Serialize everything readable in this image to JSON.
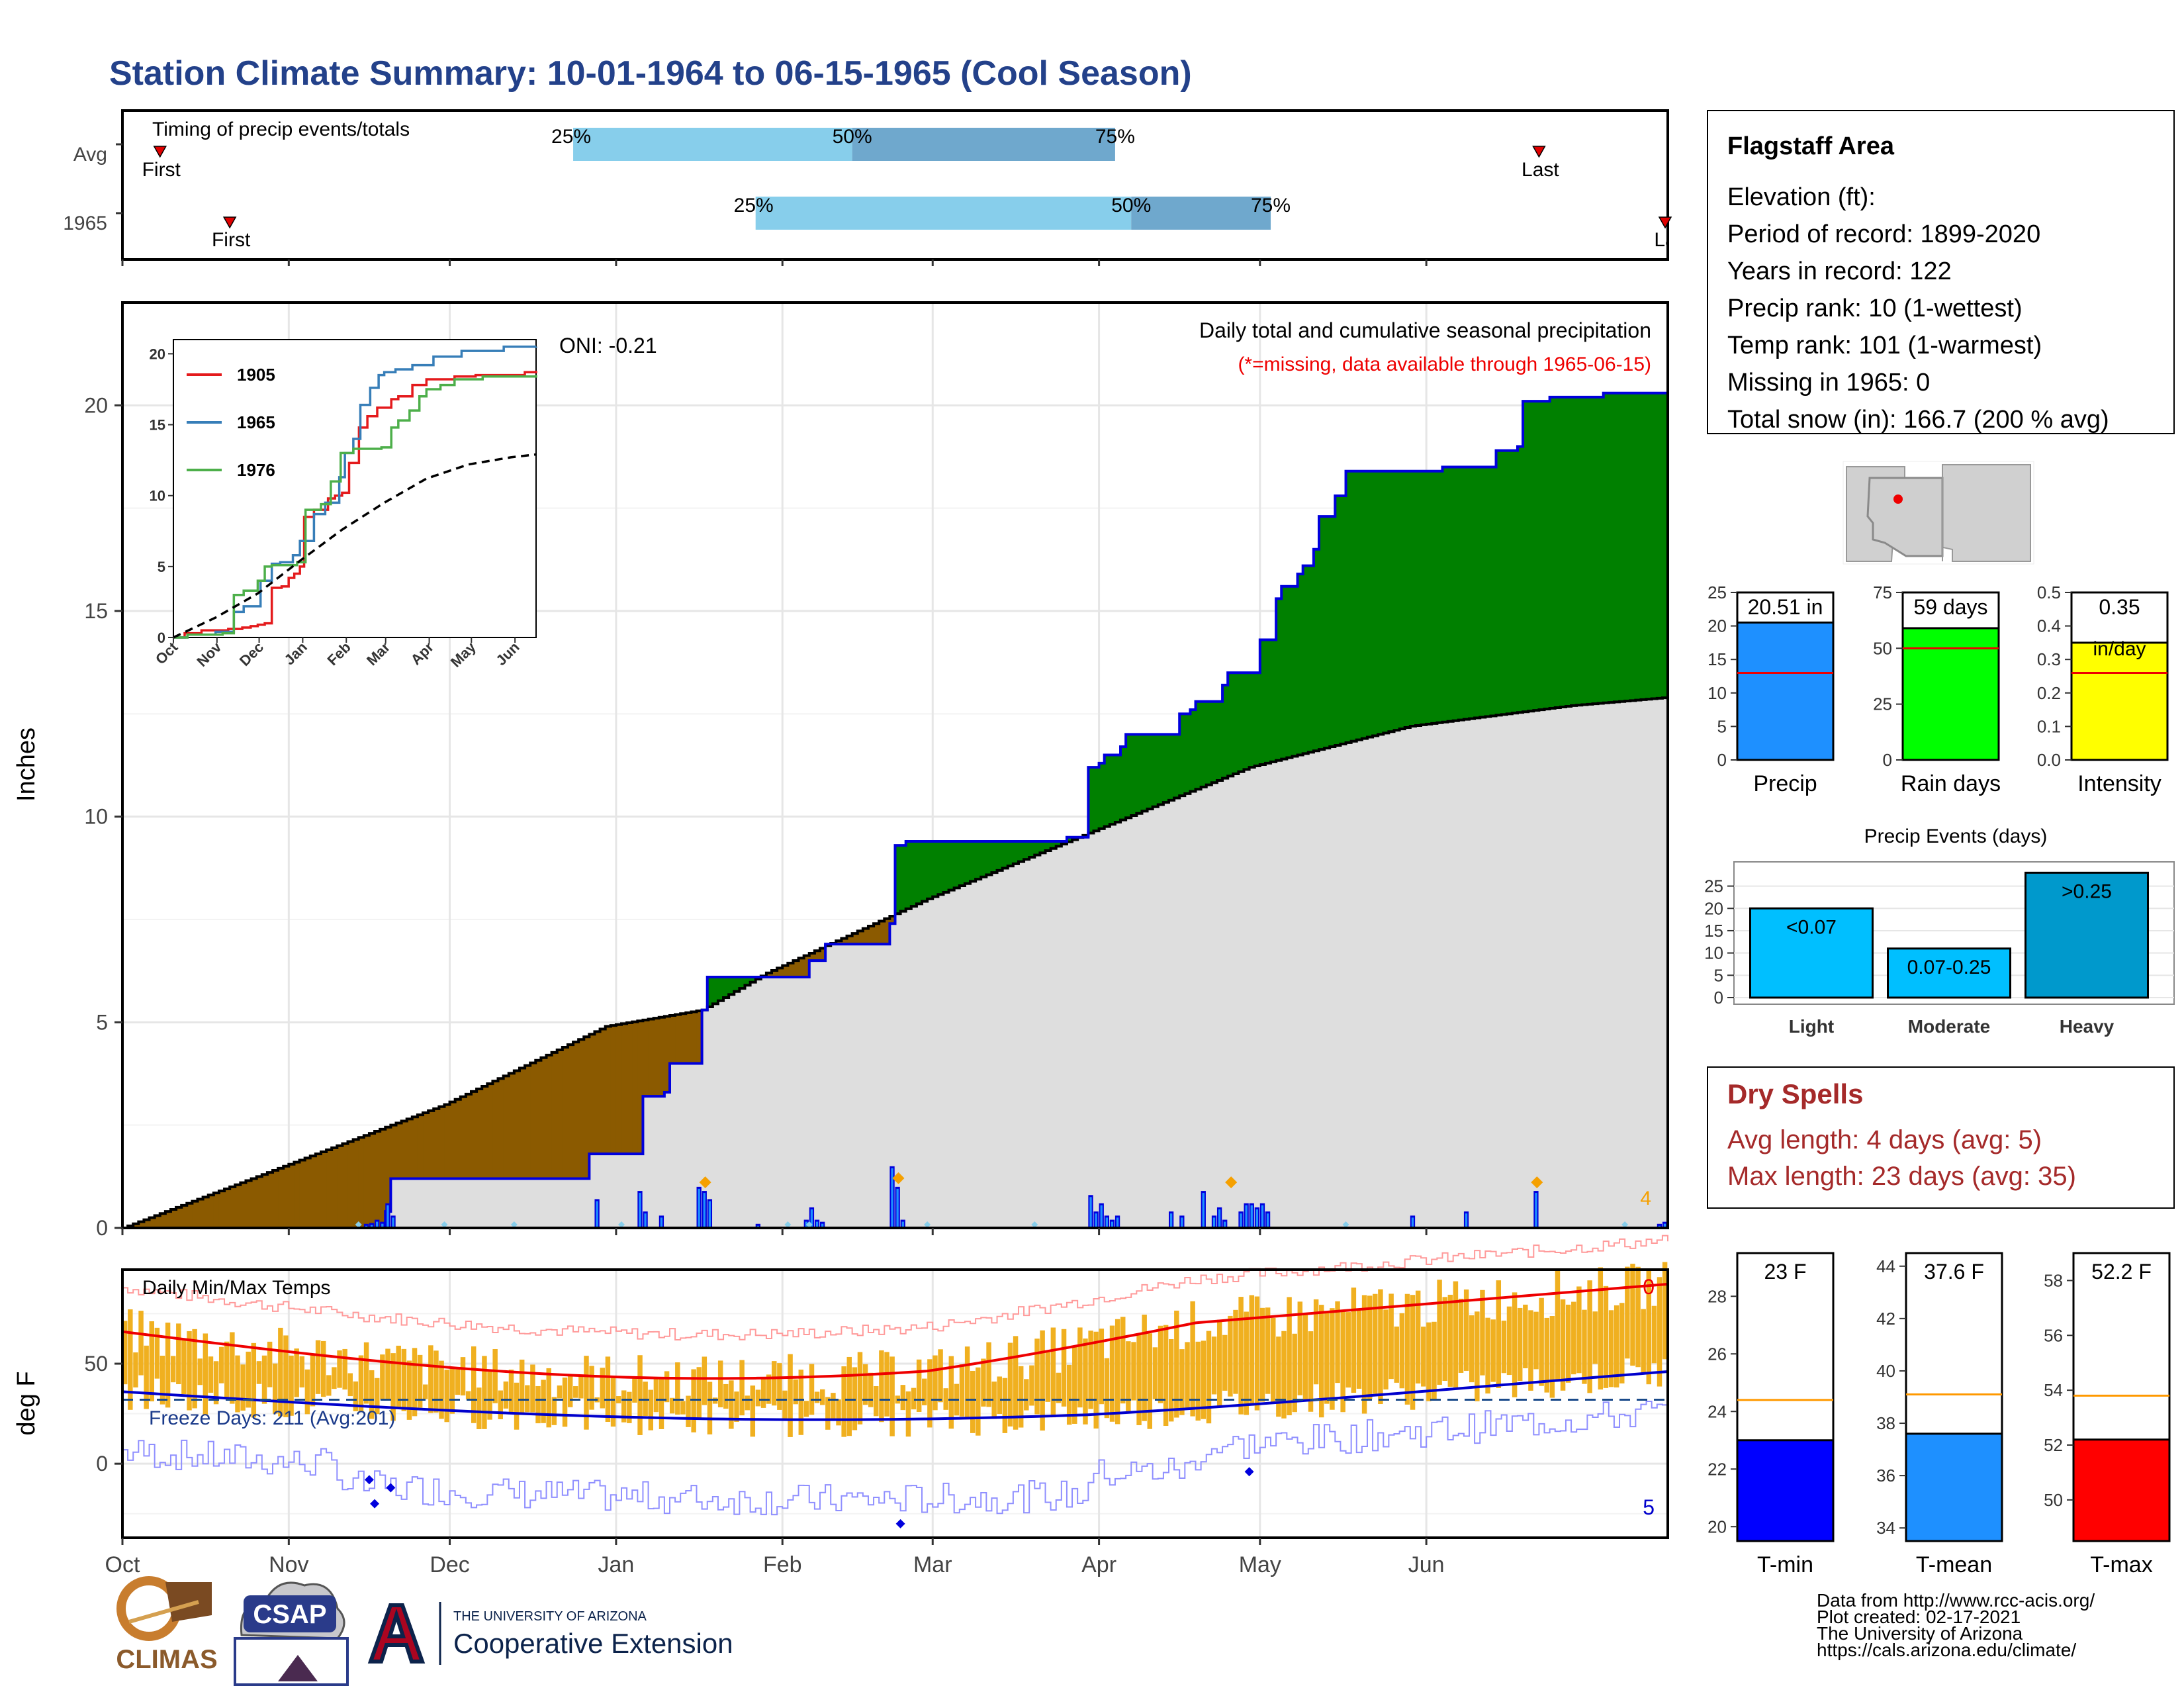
{
  "header": {
    "title": "Station Climate Summary: 10-01-1964 to 06-15-1965 (Cool Season)"
  },
  "colors": {
    "title": "#23418a",
    "cumulative_fill": "#008000",
    "deficit_fill": "#8b5a00",
    "normal_fill": "#dedede",
    "precip_line": "#0000dd",
    "event_marker": "#f5a000",
    "temp_bar": "#f0b020",
    "tmax_line": "#ee0000",
    "tmin_line": "#0000cc",
    "light_blue": "#87ceeb",
    "steel_blue": "#6fa8cd",
    "dry_spells": "#a52a2a",
    "precip_bar": "#1e90ff",
    "raindays_bar": "#00ff00",
    "intensity_bar": "#ffff00",
    "event_bar": "#00bfff",
    "event_bar_heavy": "#0099cc",
    "tmin_bar": "#0000ff",
    "tmean_bar": "#1e90ff",
    "tmax_bar": "#ff0000",
    "avg_line": "#ff9900"
  },
  "timing": {
    "title": "Timing of precip events/totals",
    "rows": [
      "Avg",
      "1965"
    ],
    "first_label": "First",
    "last_label_avg": "Last",
    "last_label_1965": "La",
    "avg": {
      "first_day": 7,
      "p25_day": 84,
      "p50_day": 136,
      "p75_day": 185,
      "last_day": 264
    },
    "y1965": {
      "first_day": 20,
      "p25_day": 118,
      "p50_day": 188,
      "p75_day": 214,
      "last_day": 284
    },
    "p25_label": "25%",
    "p50_label": "50%",
    "p75_label": "75%"
  },
  "main": {
    "ylabel": "Inches",
    "note": "Daily total and cumulative seasonal precipitation",
    "missing_note": "(*=missing, data available through 1965-06-15)",
    "oni": "ONI: -0.21",
    "events_count": "4",
    "yticks": [
      "0",
      "5",
      "10",
      "15",
      "20"
    ]
  },
  "inset": {
    "legend": [
      "1905",
      "1965",
      "1976"
    ],
    "yticks": [
      "0",
      "5",
      "10",
      "15",
      "20"
    ],
    "xticks": [
      "Oct",
      "Nov",
      "Dec",
      "Jan",
      "Feb",
      "Mar",
      "Apr",
      "May",
      "Jun"
    ]
  },
  "temps": {
    "title": "Daily Min/Max Temps",
    "ylabel": "deg F",
    "freeze": "Freeze Days: 211 (Avg:201)",
    "count_top": "0",
    "count_bottom": "5",
    "yticks": [
      "0",
      "50"
    ]
  },
  "months": [
    "Oct",
    "Nov",
    "Dec",
    "Jan",
    "Feb",
    "Mar",
    "Apr",
    "May",
    "Jun"
  ],
  "station": {
    "name": "Flagstaff Area",
    "lines": [
      "Elevation (ft):",
      "Period of record: 1899-2020",
      "Years in record: 122",
      "Precip rank: 10 (1-wettest)",
      "Temp rank: 101 (1-warmest)",
      "Missing in 1965: 0",
      "Total snow (in): 166.7 (200 % avg)"
    ]
  },
  "mini_bars": {
    "precip": {
      "label": "20.51 in",
      "name": "Precip",
      "value": 20.51,
      "avg": 13.0,
      "max": 25,
      "yticks": [
        "0",
        "5",
        "10",
        "15",
        "20",
        "25"
      ]
    },
    "rain_days": {
      "label": "59 days",
      "name": "Rain days",
      "value": 59,
      "avg": 50,
      "max": 75,
      "yticks": [
        "0",
        "25",
        "50",
        "75"
      ]
    },
    "intensity": {
      "label": "0.35",
      "label2": "in/day",
      "name": "Intensity",
      "value": 0.35,
      "avg": 0.26,
      "max": 0.5,
      "yticks": [
        "0.0",
        "0.1",
        "0.2",
        "0.3",
        "0.4",
        "0.5"
      ]
    }
  },
  "precip_events": {
    "title": "Precip Events (days)",
    "yticks": [
      "0",
      "5",
      "10",
      "15",
      "20",
      "25"
    ],
    "bars": [
      {
        "name": "Light",
        "label": "<0.07",
        "value": 20
      },
      {
        "name": "Moderate",
        "label": "0.07-0.25",
        "value": 11
      },
      {
        "name": "Heavy",
        "label": ">0.25",
        "value": 28
      }
    ]
  },
  "dry_spells": {
    "title": "Dry Spells",
    "avg": "Avg length: 4 days (avg: 5)",
    "max": "Max length: 23 days (avg: 35)"
  },
  "temp_bars": {
    "tmin": {
      "label": "23 F",
      "name": "T-min",
      "value": 23,
      "avg": 24.4,
      "min": 19.5,
      "max": 29.5,
      "yticks": [
        "20",
        "22",
        "24",
        "26",
        "28"
      ]
    },
    "tmean": {
      "label": "37.6 F",
      "name": "T-mean",
      "value": 37.6,
      "avg": 39.1,
      "min": 33.5,
      "max": 44.5,
      "yticks": [
        "34",
        "36",
        "38",
        "40",
        "42",
        "44"
      ]
    },
    "tmax": {
      "label": "52.2 F",
      "name": "T-max",
      "value": 52.2,
      "avg": 53.8,
      "min": 48.5,
      "max": 59.0,
      "yticks": [
        "50",
        "52",
        "54",
        "56",
        "58"
      ]
    }
  },
  "footer": {
    "lines": [
      "Data from http://www.rcc-acis.org/",
      "Plot created: 02-17-2021",
      "The University of Arizona",
      "https://cals.arizona.edu/climate/"
    ],
    "logo_climas": "CLIMAS",
    "logo_csap": "CSAP",
    "logo_ua_small": "THE UNIVERSITY OF ARIZONA",
    "logo_ua_large": "Cooperative Extension"
  },
  "chart_data": {
    "type": "area",
    "title": "Daily total and cumulative seasonal precipitation",
    "ylabel": "Inches",
    "ylim": [
      0,
      22.5
    ],
    "x_domain_days": [
      0,
      288
    ],
    "cumulative_1965": [
      [
        0,
        0
      ],
      [
        48,
        0.0
      ],
      [
        49,
        0.4
      ],
      [
        50,
        1.2
      ],
      [
        87,
        1.2
      ],
      [
        87,
        1.8
      ],
      [
        97,
        2.2
      ],
      [
        97,
        3.2
      ],
      [
        101,
        3.3
      ],
      [
        102,
        4.0
      ],
      [
        108,
        4.3
      ],
      [
        108,
        5.3
      ],
      [
        109,
        6.1
      ],
      [
        128,
        6.1
      ],
      [
        128,
        6.5
      ],
      [
        131,
        6.6
      ],
      [
        131,
        6.9
      ],
      [
        143,
        7.0
      ],
      [
        143,
        7.4
      ],
      [
        144,
        8.3
      ],
      [
        144,
        9.3
      ],
      [
        146,
        9.4
      ],
      [
        176,
        9.4
      ],
      [
        176,
        9.5
      ],
      [
        179,
        9.5
      ],
      [
        180,
        10.5
      ],
      [
        180,
        11.2
      ],
      [
        182,
        11.3
      ],
      [
        183,
        11.5
      ],
      [
        186,
        11.7
      ],
      [
        187,
        12.0
      ],
      [
        197,
        12.0
      ],
      [
        197,
        12.5
      ],
      [
        199,
        12.6
      ],
      [
        200,
        12.8
      ],
      [
        205,
        12.8
      ],
      [
        205,
        13.2
      ],
      [
        206,
        13.5
      ],
      [
        209,
        13.5
      ],
      [
        212,
        13.6
      ],
      [
        212,
        14.3
      ],
      [
        215,
        14.7
      ],
      [
        215,
        15.3
      ],
      [
        216,
        15.6
      ],
      [
        219,
        15.9
      ],
      [
        220,
        16.1
      ],
      [
        222,
        16.5
      ],
      [
        223,
        17.3
      ],
      [
        226,
        17.8
      ],
      [
        228,
        18.4
      ],
      [
        246,
        18.4
      ],
      [
        246,
        18.5
      ],
      [
        256,
        18.5
      ],
      [
        256,
        18.9
      ],
      [
        260,
        19.0
      ],
      [
        261,
        19.1
      ],
      [
        261,
        20.1
      ],
      [
        266,
        20.2
      ],
      [
        276,
        20.3
      ],
      [
        288,
        20.51
      ]
    ],
    "normal": [
      [
        0,
        0.0
      ],
      [
        30,
        1.5
      ],
      [
        60,
        3.0
      ],
      [
        90,
        4.9
      ],
      [
        108,
        5.3
      ],
      [
        120,
        6.2
      ],
      [
        150,
        8.0
      ],
      [
        180,
        9.6
      ],
      [
        210,
        11.2
      ],
      [
        240,
        12.2
      ],
      [
        270,
        12.7
      ],
      [
        288,
        12.9
      ]
    ],
    "daily": [
      [
        45,
        0.1
      ],
      [
        46,
        0.12
      ],
      [
        47,
        0.2
      ],
      [
        48,
        0.15
      ],
      [
        49,
        0.6
      ],
      [
        50,
        0.3
      ],
      [
        88,
        0.7
      ],
      [
        96,
        0.9
      ],
      [
        97,
        0.4
      ],
      [
        100,
        0.3
      ],
      [
        107,
        1.0
      ],
      [
        108,
        0.9
      ],
      [
        109,
        0.7
      ],
      [
        118,
        0.1
      ],
      [
        127,
        0.2
      ],
      [
        128,
        0.5
      ],
      [
        129,
        0.2
      ],
      [
        130,
        0.15
      ],
      [
        143,
        1.5
      ],
      [
        144,
        1.0
      ],
      [
        145,
        0.2
      ],
      [
        180,
        0.8
      ],
      [
        181,
        0.4
      ],
      [
        182,
        0.6
      ],
      [
        183,
        0.3
      ],
      [
        184,
        0.2
      ],
      [
        185,
        0.3
      ],
      [
        195,
        0.4
      ],
      [
        197,
        0.3
      ],
      [
        201,
        0.9
      ],
      [
        203,
        0.3
      ],
      [
        204,
        0.5
      ],
      [
        205,
        0.2
      ],
      [
        208,
        0.4
      ],
      [
        209,
        0.6
      ],
      [
        210,
        0.6
      ],
      [
        211,
        0.5
      ],
      [
        212,
        0.6
      ],
      [
        213,
        0.4
      ],
      [
        240,
        0.3
      ],
      [
        250,
        0.4
      ],
      [
        263,
        0.9
      ],
      [
        286,
        0.1
      ],
      [
        287,
        0.15
      ]
    ],
    "event_markers": [
      108,
      144,
      206,
      263
    ],
    "inset_series": [
      {
        "name": "1905",
        "points": [
          [
            0,
            0
          ],
          [
            8,
            0.3
          ],
          [
            20,
            0.5
          ],
          [
            25,
            0.5
          ],
          [
            33,
            0.5
          ],
          [
            39,
            0.6
          ],
          [
            44,
            0.6
          ],
          [
            49,
            0.7
          ],
          [
            55,
            0.8
          ],
          [
            60,
            0.9
          ],
          [
            65,
            1.0
          ],
          [
            70,
            3.5
          ],
          [
            77,
            3.6
          ],
          [
            82,
            4.2
          ],
          [
            86,
            4.5
          ],
          [
            90,
            5.0
          ],
          [
            93,
            8.5
          ],
          [
            100,
            9.0
          ],
          [
            110,
            9.8
          ],
          [
            115,
            10.0
          ],
          [
            120,
            10.2
          ],
          [
            125,
            12.3
          ],
          [
            132,
            14.8
          ],
          [
            138,
            15.6
          ],
          [
            145,
            16.2
          ],
          [
            155,
            16.8
          ],
          [
            160,
            17.0
          ],
          [
            170,
            17.8
          ],
          [
            180,
            18.2
          ],
          [
            200,
            18.4
          ],
          [
            215,
            18.5
          ],
          [
            250,
            18.7
          ],
          [
            258,
            18.8
          ]
        ]
      },
      {
        "name": "1965",
        "points": [
          [
            0,
            0
          ],
          [
            10,
            0.2
          ],
          [
            30,
            0.4
          ],
          [
            43,
            1.8
          ],
          [
            50,
            2.2
          ],
          [
            62,
            4.0
          ],
          [
            66,
            4.0
          ],
          [
            70,
            5.2
          ],
          [
            76,
            5.3
          ],
          [
            85,
            5.8
          ],
          [
            90,
            6.8
          ],
          [
            100,
            8.7
          ],
          [
            108,
            9.5
          ],
          [
            118,
            11.3
          ],
          [
            122,
            13.0
          ],
          [
            128,
            14.0
          ],
          [
            133,
            16.4
          ],
          [
            140,
            17.6
          ],
          [
            146,
            18.5
          ],
          [
            150,
            18.7
          ],
          [
            158,
            18.9
          ],
          [
            170,
            19.2
          ],
          [
            185,
            19.8
          ],
          [
            205,
            20.2
          ],
          [
            235,
            20.5
          ],
          [
            258,
            20.51
          ]
        ]
      },
      {
        "name": "1976",
        "points": [
          [
            0,
            0
          ],
          [
            10,
            0.2
          ],
          [
            35,
            0.3
          ],
          [
            43,
            3.0
          ],
          [
            50,
            3.3
          ],
          [
            60,
            4.0
          ],
          [
            65,
            5.0
          ],
          [
            70,
            5.1
          ],
          [
            88,
            5.3
          ],
          [
            94,
            9.0
          ],
          [
            105,
            9.4
          ],
          [
            112,
            11.0
          ],
          [
            119,
            13.0
          ],
          [
            128,
            13.3
          ],
          [
            148,
            13.4
          ],
          [
            155,
            14.8
          ],
          [
            160,
            15.3
          ],
          [
            168,
            16.0
          ],
          [
            175,
            17.0
          ],
          [
            180,
            17.5
          ],
          [
            190,
            17.8
          ],
          [
            200,
            18.2
          ],
          [
            220,
            18.4
          ],
          [
            258,
            18.5
          ]
        ]
      }
    ],
    "inset_normal": [
      [
        0,
        0
      ],
      [
        30,
        1.4
      ],
      [
        60,
        3.1
      ],
      [
        90,
        5.4
      ],
      [
        120,
        7.6
      ],
      [
        150,
        9.5
      ],
      [
        180,
        11.2
      ],
      [
        210,
        12.2
      ],
      [
        240,
        12.7
      ],
      [
        258,
        12.9
      ]
    ],
    "temp_stats": {
      "tmin": 23,
      "tmean": 37.6,
      "tmax": 52.2,
      "freeze_days": 211,
      "freeze_avg": 201
    }
  }
}
